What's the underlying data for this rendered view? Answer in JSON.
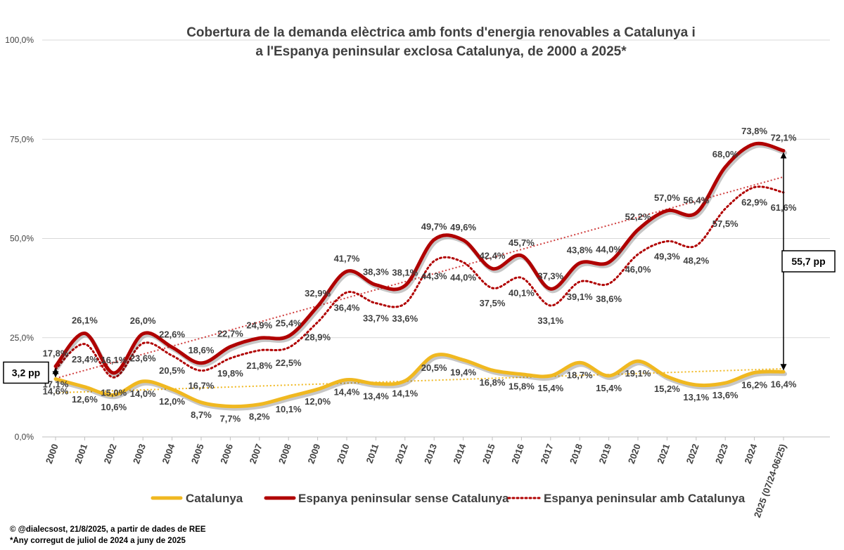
{
  "chart_data": {
    "type": "line",
    "title_lines": [
      "Cobertura de la demanda elèctrica amb fonts d'energia renovables a Catalunya i",
      "a l'Espanya peninsular exclosa Catalunya, de 2000 a 2025*"
    ],
    "y_ticks": [
      "0,0%",
      "25,0%",
      "50,0%",
      "75,0%",
      "100,0%"
    ],
    "ylim": [
      0,
      100
    ],
    "grid": true,
    "categories": [
      "2000",
      "2001",
      "2002",
      "2003",
      "2004",
      "2005",
      "2006",
      "2007",
      "2008",
      "2009",
      "2010",
      "2011",
      "2012",
      "2013",
      "2014",
      "2015",
      "2016",
      "2017",
      "2018",
      "2019",
      "2020",
      "2021",
      "2022",
      "2023",
      "2024",
      "2025 (07/24-06/25)"
    ],
    "series": [
      {
        "name": "Catalunya",
        "style": "solid-thick",
        "color": "#F0B820",
        "values": [
          14.6,
          12.6,
          10.6,
          14.0,
          12.0,
          8.7,
          7.7,
          8.2,
          10.1,
          12.0,
          14.4,
          13.4,
          14.1,
          20.5,
          19.4,
          16.8,
          15.8,
          15.4,
          18.7,
          15.4,
          19.1,
          15.2,
          13.1,
          13.6,
          16.2,
          16.4
        ],
        "labels": [
          "14,6%",
          "12,6%",
          "10,6%",
          "14,0%",
          "12,0%",
          "8,7%",
          "7,7%",
          "8,2%",
          "10,1%",
          "12,0%",
          "14,4%",
          "13,4%",
          "14,1%",
          "20,5%",
          "19,4%",
          "16,8%",
          "15,8%",
          "15,4%",
          "18,7%",
          "15,4%",
          "19,1%",
          "15,2%",
          "13,1%",
          "13,6%",
          "16,2%",
          "16,4%"
        ]
      },
      {
        "name": "Espanya peninsular sense Catalunya",
        "style": "solid-thick",
        "color": "#B00000",
        "values": [
          17.8,
          26.1,
          16.1,
          26.0,
          22.6,
          18.6,
          22.7,
          24.9,
          25.4,
          32.9,
          41.7,
          38.3,
          38.1,
          49.7,
          49.6,
          42.4,
          45.7,
          37.3,
          43.8,
          44.0,
          52.2,
          57.0,
          56.4,
          68.0,
          73.8,
          72.1
        ],
        "labels": [
          "17,8%",
          "26,1%",
          "16,1%",
          "26,0%",
          "22,6%",
          "18,6%",
          "22,7%",
          "24,9%",
          "25,4%",
          "32,9%",
          "41,7%",
          "38,3%",
          "38,1%",
          "49,7%",
          "49,6%",
          "42,4%",
          "45,7%",
          "37,3%",
          "43,8%",
          "44,0%",
          "52,2%",
          "57,0%",
          "56,4%",
          "68,0%",
          "73,8%",
          "72,1%"
        ]
      },
      {
        "name": "Espanya peninsular amb Catalunya",
        "style": "dotted",
        "color": "#B00000",
        "values": [
          17.1,
          23.4,
          15.0,
          23.6,
          20.5,
          16.7,
          19.8,
          21.8,
          22.5,
          28.9,
          36.4,
          33.7,
          33.6,
          44.3,
          44.0,
          37.5,
          40.1,
          33.1,
          39.1,
          38.6,
          46.0,
          49.3,
          48.2,
          57.5,
          62.9,
          61.6
        ],
        "labels": [
          "17,1%",
          "23,4%",
          "15,0%",
          "23,6%",
          "20,5%",
          "16,7%",
          "19,8%",
          "21,8%",
          "22,5%",
          "28,9%",
          "36,4%",
          "33,7%",
          "33,6%",
          "44,3%",
          "44,0%",
          "37,5%",
          "40,1%",
          "33,1%",
          "39,1%",
          "38,6%",
          "46,0%",
          "49,3%",
          "48,2%",
          "57,5%",
          "62,9%",
          "61,6%"
        ]
      }
    ],
    "trendlines": [
      {
        "series": "Catalunya",
        "color": "#F0B820"
      },
      {
        "series": "Espanya peninsular sense Catalunya",
        "color": "#D04040"
      }
    ],
    "annotations": [
      {
        "text": "3,2 pp",
        "year": "2000"
      },
      {
        "text": "55,7 pp",
        "year": "2025 (07/24-06/25)"
      }
    ],
    "legend_position": "bottom"
  },
  "footer": {
    "source": "© @dialecsost, 21/8/2025, a partir de dades de REE",
    "note": "*Any corregut de juliol de 2024 a juny de 2025"
  }
}
